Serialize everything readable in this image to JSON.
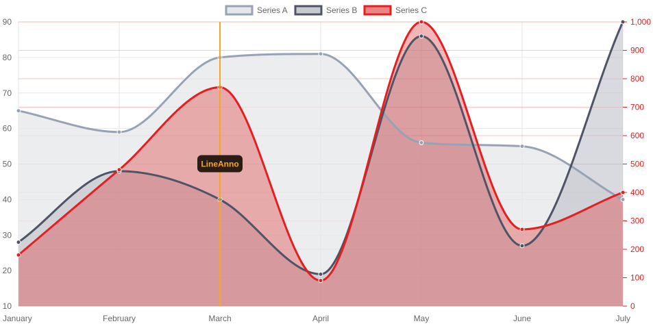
{
  "chart_data": {
    "type": "line",
    "categories": [
      "January",
      "February",
      "March",
      "April",
      "May",
      "June",
      "July"
    ],
    "series": [
      {
        "name": "Series A",
        "axis": "left",
        "values": [
          65,
          59,
          80,
          81,
          56,
          55,
          40
        ],
        "line_color": "#97a3b4",
        "fill_color": "#e6e7ea",
        "fill_opacity": 0.75
      },
      {
        "name": "Series B",
        "axis": "left",
        "values": [
          28,
          48,
          40,
          19,
          86,
          27,
          90
        ],
        "line_color": "#4e5466",
        "fill_color": "#b9bcc4",
        "fill_opacity": 0.55
      },
      {
        "name": "Series C",
        "axis": "right",
        "values": [
          180,
          480,
          770,
          90,
          1000,
          270,
          400
        ],
        "line_color": "#e51f1f",
        "fill_color": "#e03c3c",
        "fill_opacity": 0.38
      }
    ],
    "y_left": {
      "min": 10,
      "max": 90,
      "ticks": [
        "10",
        "20",
        "30",
        "40",
        "50",
        "60",
        "70",
        "80",
        "90"
      ]
    },
    "y_right": {
      "min": 0,
      "max": 1000,
      "ticks": [
        "0",
        "100",
        "200",
        "300",
        "400",
        "500",
        "600",
        "700",
        "800",
        "900",
        "1,000"
      ],
      "color": "#e01f1f"
    },
    "annotation": {
      "label": "LineAnno",
      "category": "March",
      "line_color": "#f5a623",
      "label_bg": "#2b1d16",
      "label_color": "#f5a623"
    },
    "legend_position": "top",
    "grid": true
  }
}
